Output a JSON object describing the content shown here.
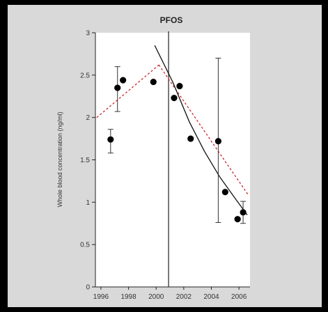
{
  "chart_data": {
    "type": "scatter",
    "title": "PFOS",
    "ylabel": "Whole blood concentration (ng/ml)",
    "xlabel": "",
    "xlim": [
      1995.6,
      2006.8
    ],
    "ylim": [
      0,
      3
    ],
    "yticks": [
      0,
      0.5,
      1,
      1.5,
      2,
      2.5,
      3
    ],
    "ytick_labels": [
      "0",
      "0.5",
      "1",
      "1.5",
      "2",
      "2.5",
      "3"
    ],
    "xticks": [
      1996,
      1998,
      2000,
      2002,
      2004,
      2006
    ],
    "xtick_labels": [
      "1996",
      "1998",
      "2000",
      "2002",
      "2004",
      "2006"
    ],
    "breakpoint_year": 2000.9,
    "points": [
      {
        "x": 1996.7,
        "y": 1.74,
        "err_low": 1.58,
        "err_high": 1.86
      },
      {
        "x": 1997.2,
        "y": 2.35,
        "err_low": 2.07,
        "err_high": 2.6
      },
      {
        "x": 1997.6,
        "y": 2.44
      },
      {
        "x": 1999.8,
        "y": 2.42
      },
      {
        "x": 2001.3,
        "y": 2.23
      },
      {
        "x": 2001.7,
        "y": 2.37
      },
      {
        "x": 2002.5,
        "y": 1.75
      },
      {
        "x": 2004.5,
        "y": 1.72,
        "err_low": 0.76,
        "err_high": 2.7
      },
      {
        "x": 2005.0,
        "y": 1.12
      },
      {
        "x": 2005.9,
        "y": 0.8
      },
      {
        "x": 2006.3,
        "y": 0.88,
        "err_low": 0.75,
        "err_high": 1.01
      }
    ],
    "fit_lines": [
      {
        "style": "dashed",
        "color": "#cc2222",
        "points": [
          [
            1995.7,
            2.0
          ],
          [
            2000.2,
            2.62
          ]
        ]
      },
      {
        "style": "dashed",
        "color": "#cc2222",
        "points": [
          [
            2000.2,
            2.62
          ],
          [
            2006.7,
            1.08
          ]
        ]
      },
      {
        "style": "solid",
        "color": "#111111",
        "points": [
          [
            1999.9,
            2.85
          ],
          [
            2001.2,
            2.42
          ],
          [
            2002.4,
            1.95
          ],
          [
            2003.5,
            1.6
          ],
          [
            2004.6,
            1.3
          ],
          [
            2005.7,
            1.05
          ],
          [
            2006.6,
            0.85
          ]
        ]
      }
    ]
  }
}
